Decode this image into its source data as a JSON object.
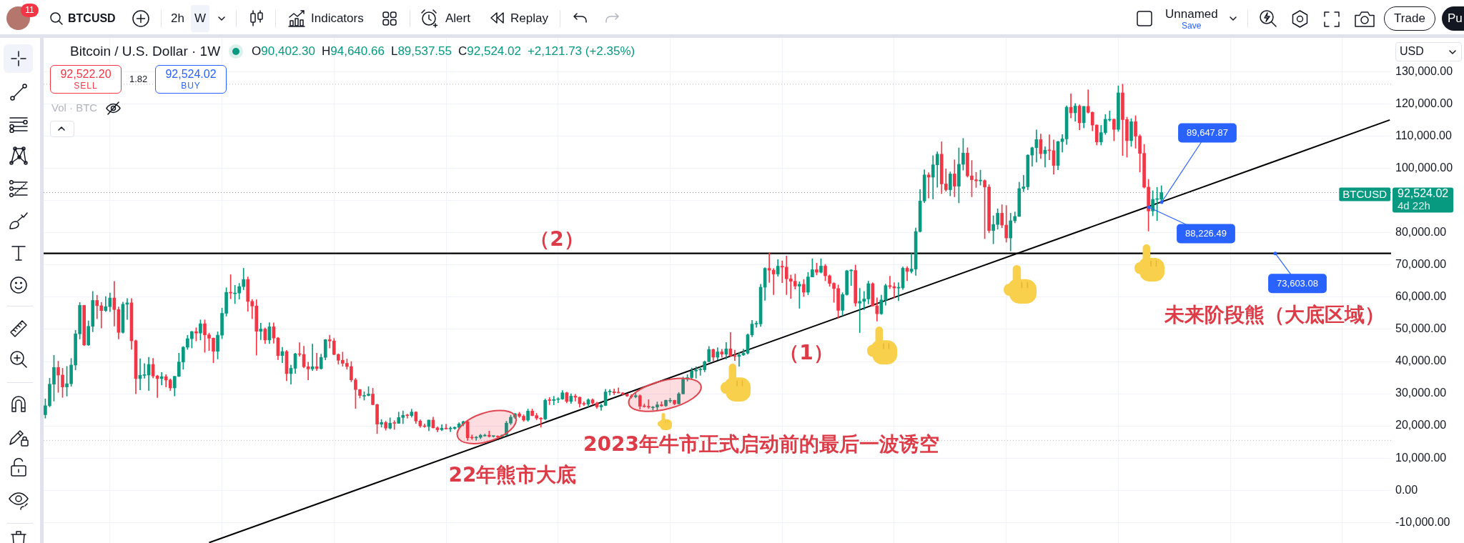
{
  "chart_data": {
    "type": "candlestick",
    "title": "Bitcoin / U.S. Dollar · 1W",
    "categories": [
      null,
      null,
      null,
      null,
      null,
      null,
      null,
      null,
      null,
      null,
      null,
      null,
      null,
      null,
      null,
      null,
      null,
      null,
      null,
      null,
      null,
      null,
      null,
      null,
      null,
      null,
      null,
      null,
      null,
      null,
      null,
      null,
      null,
      null,
      null,
      null,
      null,
      null,
      null,
      null,
      null,
      null,
      null,
      null,
      null,
      null,
      null,
      null,
      null,
      null,
      null,
      null,
      null,
      null,
      null,
      null,
      null,
      null,
      null,
      null,
      null,
      null,
      null,
      null,
      null,
      null,
      null,
      null,
      null,
      null,
      null,
      null,
      null,
      null,
      null,
      null,
      null,
      null,
      null,
      null,
      null,
      null,
      null,
      null,
      null,
      null,
      null,
      null,
      null,
      null,
      null,
      null,
      null,
      null,
      null,
      null,
      null,
      null,
      null,
      null,
      null,
      null,
      null,
      null,
      null,
      null,
      null,
      null,
      null,
      null,
      null,
      null,
      null,
      null,
      null,
      null,
      null,
      null,
      null,
      null,
      null,
      null,
      null,
      null,
      null,
      null,
      null,
      null,
      null,
      null,
      null,
      null,
      null,
      null,
      null,
      null,
      null,
      null,
      null,
      null,
      null,
      null,
      null,
      null,
      null,
      null,
      null,
      null,
      null,
      null,
      null,
      null,
      null,
      null,
      null,
      null,
      null,
      null,
      null,
      null,
      null,
      null,
      null,
      null,
      null,
      null,
      null,
      null,
      null,
      null,
      null,
      null,
      null,
      null,
      null,
      null,
      null,
      null,
      null,
      null,
      null,
      null,
      null,
      null,
      null,
      null,
      null,
      null,
      null,
      null,
      null,
      null,
      null,
      null,
      null,
      null,
      null,
      null,
      null,
      null,
      null,
      null,
      null,
      null,
      null,
      null,
      null,
      null,
      null,
      null,
      null,
      null,
      null,
      null,
      null,
      null,
      null,
      null,
      null,
      null,
      null,
      null,
      null,
      null,
      null,
      null,
      null,
      null,
      null,
      null,
      null,
      null,
      null,
      null,
      null,
      null,
      null,
      null,
      null,
      null,
      null,
      null,
      null,
      null,
      null,
      null,
      null,
      null,
      null,
      null,
      null,
      null,
      null,
      null,
      null,
      null,
      null,
      null,
      null,
      null,
      null,
      null,
      null,
      null,
      null,
      null,
      null,
      null,
      null,
      null,
      null,
      null,
      null,
      null,
      null,
      null,
      null,
      null,
      null,
      null,
      null,
      null,
      null,
      null,
      null,
      null,
      null,
      null,
      null,
      null,
      null,
      null,
      null,
      null,
      null,
      null,
      null,
      null,
      null,
      null,
      null,
      null,
      null,
      null,
      null,
      null,
      null,
      null,
      null,
      null,
      null,
      null,
      null
    ],
    "ohlc": [
      [
        23470,
        28400,
        22400,
        26270
      ],
      [
        26270,
        34800,
        25900,
        32960
      ],
      [
        32960,
        41950,
        27700,
        38150
      ],
      [
        38150,
        40100,
        30400,
        35800
      ],
      [
        35800,
        37900,
        28850,
        32100
      ],
      [
        32100,
        38500,
        29250,
        33100
      ],
      [
        33100,
        40950,
        32300,
        38900
      ],
      [
        38900,
        49700,
        37400,
        48600
      ],
      [
        48600,
        58350,
        47000,
        57450
      ],
      [
        57450,
        57500,
        44900,
        45150
      ],
      [
        45150,
        52650,
        44950,
        50950
      ],
      [
        50950,
        61800,
        49250,
        59000
      ],
      [
        59000,
        60600,
        53300,
        57350
      ],
      [
        57350,
        58400,
        50400,
        55850
      ],
      [
        55850,
        60200,
        55500,
        57050
      ],
      [
        57050,
        61300,
        55500,
        59750
      ],
      [
        59750,
        64900,
        51000,
        56150
      ],
      [
        56150,
        57000,
        47000,
        49050
      ],
      [
        49050,
        58450,
        48800,
        57800
      ],
      [
        57800,
        59600,
        53050,
        58250
      ],
      [
        58250,
        59600,
        43800,
        46450
      ],
      [
        46450,
        46700,
        30000,
        34700
      ],
      [
        34700,
        40900,
        31200,
        35700
      ],
      [
        35700,
        39400,
        34800,
        35800
      ],
      [
        35800,
        41300,
        31000,
        39100
      ],
      [
        39100,
        41000,
        34900,
        35500
      ],
      [
        35500,
        35750,
        28800,
        34700
      ],
      [
        34700,
        36600,
        32700,
        35300
      ],
      [
        35300,
        35950,
        32100,
        34250
      ],
      [
        34250,
        34600,
        31000,
        31800
      ],
      [
        31800,
        35400,
        29300,
        35400
      ],
      [
        35400,
        42600,
        35300,
        39850
      ],
      [
        39850,
        44700,
        37600,
        44450
      ],
      [
        44450,
        48150,
        43800,
        47100
      ],
      [
        47100,
        49400,
        44200,
        49300
      ],
      [
        49300,
        50500,
        46400,
        48850
      ],
      [
        48850,
        52950,
        46700,
        51750
      ],
      [
        51750,
        52950,
        42850,
        48300
      ],
      [
        48300,
        48850,
        43400,
        47250
      ],
      [
        47250,
        47350,
        39600,
        43200
      ],
      [
        43200,
        49250,
        40800,
        48200
      ],
      [
        48200,
        56600,
        47100,
        55000
      ],
      [
        55000,
        62950,
        54100,
        61500
      ],
      [
        61500,
        67000,
        59500,
        61300
      ],
      [
        61300,
        63700,
        58000,
        61300
      ],
      [
        61300,
        64300,
        59400,
        63300
      ],
      [
        63300,
        69000,
        62300,
        65500
      ],
      [
        65500,
        66300,
        55600,
        58700
      ],
      [
        58700,
        59300,
        53300,
        57250
      ],
      [
        57250,
        59200,
        42000,
        49400
      ],
      [
        49400,
        51950,
        46800,
        50100
      ],
      [
        50100,
        50500,
        45600,
        46700
      ],
      [
        46700,
        52100,
        45550,
        50800
      ],
      [
        50800,
        52050,
        45700,
        47300
      ],
      [
        47300,
        47550,
        40600,
        41850
      ],
      [
        41850,
        44450,
        39650,
        43100
      ],
      [
        43100,
        43500,
        34000,
        36250
      ],
      [
        36250,
        38900,
        32950,
        37900
      ],
      [
        37900,
        42600,
        36300,
        42400
      ],
      [
        42400,
        45850,
        41650,
        42200
      ],
      [
        42200,
        44750,
        38000,
        38400
      ],
      [
        38400,
        39800,
        34300,
        37700
      ],
      [
        37700,
        45400,
        37200,
        38400
      ],
      [
        38400,
        42600,
        37200,
        37800
      ],
      [
        37800,
        42300,
        37600,
        41300
      ],
      [
        41300,
        46900,
        40500,
        46800
      ],
      [
        46800,
        48200,
        44200,
        46400
      ],
      [
        46400,
        47200,
        42100,
        42200
      ],
      [
        42200,
        42400,
        39200,
        40400
      ],
      [
        40400,
        42950,
        38550,
        39450
      ],
      [
        39450,
        40800,
        37600,
        38450
      ],
      [
        38450,
        40000,
        33700,
        34300
      ],
      [
        34300,
        34800,
        25400,
        31300
      ],
      [
        31300,
        31350,
        28650,
        29450
      ],
      [
        29450,
        30600,
        28000,
        29450
      ],
      [
        29450,
        32200,
        29300,
        29900
      ],
      [
        29900,
        31700,
        26500,
        26600
      ],
      [
        26600,
        26800,
        17600,
        20550
      ],
      [
        20550,
        22000,
        19600,
        21050
      ],
      [
        21050,
        21500,
        18650,
        19300
      ],
      [
        19300,
        22500,
        19000,
        20850
      ],
      [
        20850,
        21650,
        18900,
        20800
      ],
      [
        20800,
        24300,
        20750,
        22600
      ],
      [
        22600,
        24650,
        20700,
        23300
      ],
      [
        23300,
        23650,
        22400,
        23200
      ],
      [
        23200,
        25200,
        22700,
        24300
      ],
      [
        24300,
        24450,
        20750,
        21500
      ],
      [
        21500,
        21900,
        19550,
        20000
      ],
      [
        20000,
        20600,
        19550,
        19800
      ],
      [
        19800,
        21850,
        18500,
        21800
      ],
      [
        21800,
        22700,
        19300,
        19400
      ],
      [
        19400,
        19700,
        18150,
        18800
      ],
      [
        18800,
        20400,
        18500,
        19300
      ],
      [
        19300,
        20500,
        19000,
        19050
      ],
      [
        19050,
        19700,
        18200,
        19200
      ],
      [
        19200,
        19700,
        18900,
        19550
      ],
      [
        19550,
        21000,
        19250,
        20600
      ],
      [
        20600,
        21500,
        20050,
        21300
      ],
      [
        21300,
        21500,
        15500,
        16300
      ],
      [
        16300,
        17200,
        15800,
        16280
      ],
      [
        16280,
        16750,
        15500,
        16450
      ],
      [
        16450,
        17400,
        16000,
        17100
      ],
      [
        17100,
        17450,
        16750,
        17100
      ],
      [
        17100,
        18400,
        16500,
        16750
      ],
      [
        16750,
        16950,
        16500,
        16840
      ],
      [
        16840,
        16950,
        16350,
        16600
      ],
      [
        16600,
        17200,
        16500,
        17120
      ],
      [
        17120,
        21450,
        17100,
        20870
      ],
      [
        20870,
        23350,
        20400,
        22700
      ],
      [
        22700,
        23950,
        22300,
        23750
      ],
      [
        23750,
        24250,
        22600,
        23000
      ],
      [
        23000,
        23450,
        21400,
        21800
      ],
      [
        21800,
        25250,
        21400,
        24600
      ],
      [
        24600,
        25250,
        23100,
        23200
      ],
      [
        23200,
        23900,
        21900,
        22400
      ],
      [
        22400,
        22600,
        19600,
        22150
      ],
      [
        22150,
        28400,
        21900,
        27950
      ],
      [
        27950,
        28850,
        26600,
        27900
      ],
      [
        27900,
        29200,
        26550,
        28200
      ],
      [
        28200,
        28800,
        27200,
        28350
      ],
      [
        28350,
        31000,
        28200,
        30300
      ],
      [
        30300,
        30500,
        27150,
        27600
      ],
      [
        27600,
        30000,
        26950,
        29250
      ],
      [
        29250,
        29800,
        27700,
        28900
      ],
      [
        28900,
        29000,
        25800,
        26900
      ],
      [
        26900,
        27500,
        26300,
        26750
      ],
      [
        26750,
        28450,
        25900,
        28100
      ],
      [
        28100,
        28450,
        26600,
        27100
      ],
      [
        27100,
        27400,
        25400,
        25900
      ],
      [
        25900,
        26800,
        24800,
        26350
      ],
      [
        26350,
        31400,
        26250,
        30550
      ],
      [
        30550,
        31300,
        29550,
        30600
      ],
      [
        30600,
        31500,
        29700,
        30300
      ],
      [
        30300,
        31800,
        30200,
        30250
      ],
      [
        30250,
        30400,
        29500,
        29850
      ],
      [
        29850,
        29950,
        29100,
        29300
      ],
      [
        29300,
        29750,
        28600,
        29050
      ],
      [
        29050,
        30250,
        28700,
        29400
      ],
      [
        29400,
        29650,
        25200,
        26100
      ],
      [
        26100,
        26800,
        25800,
        26000
      ],
      [
        26000,
        28150,
        25400,
        25850
      ],
      [
        25850,
        26100,
        24900,
        25850
      ],
      [
        25850,
        27450,
        24900,
        26550
      ],
      [
        26550,
        27500,
        26100,
        26250
      ],
      [
        26250,
        28050,
        26000,
        27950
      ],
      [
        27950,
        28600,
        27200,
        27950
      ],
      [
        27950,
        28000,
        26550,
        26850
      ],
      [
        26850,
        30400,
        26800,
        29950
      ],
      [
        29950,
        35200,
        29900,
        34500
      ],
      [
        34500,
        35950,
        33900,
        35000
      ],
      [
        35000,
        38000,
        34500,
        37050
      ],
      [
        37050,
        38400,
        34800,
        37400
      ],
      [
        37400,
        38400,
        35700,
        37450
      ],
      [
        37450,
        40200,
        36800,
        39950
      ],
      [
        39950,
        44700,
        39900,
        43750
      ],
      [
        43750,
        43900,
        40200,
        41350
      ],
      [
        41350,
        44300,
        40500,
        43000
      ],
      [
        43000,
        43800,
        41300,
        42300
      ],
      [
        42300,
        45900,
        40750,
        43950
      ],
      [
        43950,
        49050,
        41500,
        41750
      ],
      [
        41750,
        43550,
        40300,
        41600
      ],
      [
        41600,
        42850,
        38550,
        42050
      ],
      [
        42050,
        43850,
        41850,
        42600
      ],
      [
        42600,
        48600,
        42300,
        48300
      ],
      [
        48300,
        52800,
        47700,
        51650
      ],
      [
        51650,
        52550,
        50600,
        51700
      ],
      [
        51700,
        64000,
        50900,
        63100
      ],
      [
        63100,
        69200,
        59000,
        68950
      ],
      [
        68950,
        73800,
        64550,
        68400
      ],
      [
        68400,
        68900,
        60800,
        67200
      ],
      [
        67200,
        71700,
        66500,
        69650
      ],
      [
        69650,
        71300,
        64500,
        69350
      ],
      [
        69350,
        72800,
        60800,
        65700
      ],
      [
        65700,
        66900,
        59600,
        64950
      ],
      [
        64950,
        67200,
        62500,
        63450
      ],
      [
        63450,
        64800,
        56550,
        64000
      ],
      [
        64000,
        65500,
        60200,
        61550
      ],
      [
        61550,
        67700,
        60750,
        66300
      ],
      [
        66300,
        71950,
        66300,
        68550
      ],
      [
        68550,
        70600,
        66900,
        67750
      ],
      [
        67750,
        71950,
        67500,
        69650
      ],
      [
        69650,
        70200,
        65100,
        66650
      ],
      [
        66650,
        66950,
        63400,
        64300
      ],
      [
        64300,
        64500,
        58400,
        62700
      ],
      [
        62700,
        63800,
        53500,
        55900
      ],
      [
        55900,
        61400,
        54300,
        60800
      ],
      [
        60800,
        68400,
        60600,
        68200
      ],
      [
        68200,
        68600,
        63600,
        68300
      ],
      [
        68300,
        70000,
        57200,
        58150
      ],
      [
        58150,
        62750,
        49000,
        58700
      ],
      [
        58700,
        61800,
        56100,
        59450
      ],
      [
        59450,
        65000,
        57900,
        64200
      ],
      [
        64200,
        64500,
        57200,
        57300
      ],
      [
        57300,
        59800,
        52550,
        54850
      ],
      [
        54850,
        60650,
        54600,
        59150
      ],
      [
        59150,
        64100,
        57500,
        63600
      ],
      [
        63600,
        66500,
        62700,
        63300
      ],
      [
        63300,
        64500,
        59800,
        62850
      ],
      [
        62850,
        64500,
        58900,
        62900
      ],
      [
        62900,
        69400,
        62400,
        69000
      ],
      [
        69000,
        69500,
        65100,
        68000
      ],
      [
        68000,
        73600,
        67500,
        68750
      ],
      [
        68750,
        81500,
        66800,
        80400
      ],
      [
        80400,
        93450,
        80200,
        89900
      ],
      [
        89900,
        99600,
        89400,
        98000
      ],
      [
        98000,
        98700,
        90800,
        97300
      ],
      [
        97300,
        104000,
        90500,
        101150
      ],
      [
        101150,
        105200,
        94150,
        104450
      ],
      [
        104450,
        108300,
        92200,
        95200
      ],
      [
        95200,
        99900,
        92900,
        93400
      ],
      [
        93400,
        98950,
        91500,
        98300
      ],
      [
        98300,
        102700,
        91200,
        94500
      ],
      [
        94500,
        106400,
        89300,
        101300
      ],
      [
        101300,
        109350,
        99500,
        104800
      ],
      [
        104800,
        106450,
        97300,
        97700
      ],
      [
        97700,
        102500,
        91200,
        96500
      ],
      [
        96500,
        98800,
        94100,
        96150
      ],
      [
        96150,
        99500,
        94800,
        96250
      ],
      [
        96250,
        96500,
        78200,
        94250
      ],
      [
        94250,
        95000,
        80000,
        80700
      ],
      [
        80700,
        85300,
        76600,
        82600
      ],
      [
        82600,
        87450,
        81150,
        86100
      ],
      [
        86100,
        88750,
        81600,
        82400
      ],
      [
        82400,
        88500,
        77100,
        78400
      ],
      [
        78400,
        86100,
        74400,
        83750
      ],
      [
        83750,
        86500,
        83100,
        85100
      ],
      [
        85100,
        95750,
        85100,
        93750
      ],
      [
        93750,
        97900,
        92800,
        94300
      ],
      [
        94300,
        104300,
        93400,
        104150
      ],
      [
        104150,
        106650,
        100700,
        106450
      ],
      [
        106450,
        112000,
        102000,
        109000
      ],
      [
        109000,
        110700,
        103100,
        104600
      ],
      [
        104600,
        106800,
        100400,
        105700
      ],
      [
        105700,
        110500,
        102700,
        105550
      ],
      [
        105550,
        108900,
        98200,
        100950
      ],
      [
        100950,
        108500,
        99600,
        108350
      ],
      [
        108350,
        110550,
        105100,
        109200
      ],
      [
        109200,
        119500,
        107500,
        119050
      ],
      [
        119050,
        123200,
        115700,
        117300
      ],
      [
        117300,
        120200,
        114700,
        119400
      ],
      [
        119400,
        119800,
        112000,
        114200
      ],
      [
        114200,
        119300,
        112600,
        119300
      ],
      [
        119300,
        124450,
        117200,
        117450
      ],
      [
        117450,
        117600,
        111700,
        113500
      ],
      [
        113500,
        113600,
        107300,
        108250
      ],
      [
        108250,
        113400,
        107300,
        111150
      ],
      [
        111150,
        116800,
        110600,
        115300
      ],
      [
        115300,
        117900,
        114700,
        115300
      ],
      [
        115300,
        115400,
        108600,
        112150
      ],
      [
        112150,
        125700,
        111500,
        123500
      ],
      [
        123500,
        126200,
        104000,
        115200
      ],
      [
        115200,
        115950,
        103500,
        108650
      ],
      [
        108650,
        115500,
        106900,
        114550
      ],
      [
        114550,
        116400,
        106300,
        110050
      ],
      [
        110050,
        110500,
        98900,
        104700
      ],
      [
        104700,
        107500,
        93900,
        94200
      ],
      [
        94200,
        96600,
        80550,
        86800
      ],
      [
        86800,
        93100,
        85300,
        90400
      ],
      [
        90400,
        94150,
        83800,
        90402.3
      ],
      [
        90402.3,
        94640.66,
        89537.55,
        92524.02
      ],
      null,
      null,
      null,
      null,
      null,
      null,
      null,
      null,
      null,
      null,
      null,
      null,
      null,
      null,
      null,
      null,
      null,
      null,
      null,
      null,
      null,
      null,
      null,
      null,
      null,
      null,
      null,
      null,
      null,
      null,
      null,
      null,
      null,
      null,
      null,
      null,
      null,
      null,
      null,
      null,
      null,
      null,
      null,
      null,
      null,
      null,
      null,
      null,
      null,
      null,
      null,
      null,
      null
    ],
    "colors": [
      "#089981",
      "#089981",
      "#089981",
      "#f23645",
      "#f23645",
      "#089981",
      "#089981",
      "#089981",
      "#089981",
      "#f23645",
      "#089981",
      "#089981",
      "#f23645",
      "#f23645",
      "#089981",
      "#089981",
      "#f23645",
      "#f23645",
      "#089981",
      "#089981",
      "#f23645",
      "#f23645",
      "#089981",
      "#089981",
      "#089981",
      "#f23645",
      "#f23645",
      "#089981",
      "#f23645",
      "#f23645",
      "#089981",
      "#089981",
      "#089981",
      "#089981",
      "#089981",
      "#f23645",
      "#089981",
      "#f23645",
      "#f23645",
      "#f23645",
      "#089981",
      "#089981",
      "#089981",
      "#f23645",
      "#089981",
      "#089981",
      "#089981",
      "#f23645",
      "#f23645",
      "#f23645",
      "#089981",
      "#f23645",
      "#089981",
      "#f23645",
      "#f23645",
      "#089981",
      "#f23645",
      "#089981",
      "#089981",
      "#f23645",
      "#f23645",
      "#f23645",
      "#089981",
      "#f23645",
      "#089981",
      "#089981",
      "#f23645",
      "#f23645",
      "#f23645",
      "#f23645",
      "#f23645",
      "#f23645",
      "#f23645",
      "#f23645",
      "#089981",
      "#089981",
      "#f23645",
      "#f23645",
      "#089981",
      "#f23645",
      "#089981",
      "#f23645",
      "#089981",
      "#089981",
      "#f23645",
      "#089981",
      "#f23645",
      "#f23645",
      "#f23645",
      "#089981",
      "#f23645",
      "#f23645",
      "#089981",
      "#f23645",
      "#089981",
      "#089981",
      "#089981",
      "#089981",
      "#f23645",
      "#f23645",
      "#089981",
      "#089981",
      "#089981",
      "#f23645",
      "#089981",
      "#f23645",
      "#089981",
      "#089981",
      "#089981",
      "#089981",
      "#f23645",
      "#f23645",
      "#089981",
      "#f23645",
      "#f23645",
      "#f23645",
      "#089981",
      "#f23645",
      "#089981",
      "#089981",
      "#089981",
      "#f23645",
      "#089981",
      "#f23645",
      "#f23645",
      "#f23645",
      "#089981",
      "#f23645",
      "#f23645",
      "#089981",
      "#089981",
      "#089981",
      "#f23645",
      "#f23645",
      "#f23645",
      "#f23645",
      "#f23645",
      "#089981",
      "#f23645",
      "#f23645",
      "#f23645",
      "#089981",
      "#089981",
      "#f23645",
      "#089981",
      "#089981",
      "#f23645",
      "#089981",
      "#089981",
      "#089981",
      "#089981",
      "#089981",
      "#089981",
      "#089981",
      "#089981",
      "#f23645",
      "#089981",
      "#f23645",
      "#089981",
      "#f23645",
      "#f23645",
      "#089981",
      "#089981",
      "#089981",
      "#089981",
      "#089981",
      "#089981",
      "#089981",
      "#f23645",
      "#f23645",
      "#089981",
      "#f23645",
      "#f23645",
      "#f23645",
      "#f23645",
      "#089981",
      "#f23645",
      "#089981",
      "#089981",
      "#f23645",
      "#089981",
      "#f23645",
      "#f23645",
      "#f23645",
      "#f23645",
      "#089981",
      "#089981",
      "#089981",
      "#f23645",
      "#089981",
      "#089981",
      "#089981",
      "#f23645",
      "#f23645",
      "#089981",
      "#089981",
      "#f23645",
      "#f23645",
      "#089981",
      "#089981",
      "#f23645",
      "#089981",
      "#089981",
      "#089981",
      "#089981",
      "#f23645",
      "#089981",
      "#089981",
      "#f23645",
      "#f23645",
      "#089981",
      "#f23645",
      "#089981",
      "#089981",
      "#f23645",
      "#f23645",
      "#f23645",
      "#089981",
      "#f23645",
      "#f23645",
      "#089981",
      "#089981",
      "#f23645",
      "#f23645",
      "#089981",
      "#089981",
      "#089981",
      "#089981",
      "#089981",
      "#089981",
      "#089981",
      "#f23645",
      "#089981",
      "#f23645",
      "#f23645",
      "#089981",
      "#089981",
      "#089981",
      "#f23645",
      "#089981",
      "#f23645",
      "#089981",
      "#f23645",
      "#f23645",
      "#f23645",
      "#089981",
      "#089981",
      "#089981",
      "#f23645",
      "#089981",
      "#f23645",
      "#f23645",
      "#089981",
      "#f23645",
      "#f23645",
      "#f23645",
      "#f23645",
      "#089981",
      "#089981",
      "#089981",
      null,
      null,
      null,
      null,
      null,
      null,
      null,
      null,
      null,
      null,
      null,
      null,
      null,
      null,
      null,
      null,
      null,
      null,
      null,
      null,
      null,
      null,
      null,
      null,
      null,
      null,
      null,
      null,
      null,
      null,
      null,
      null,
      null,
      null,
      null,
      null,
      null,
      null,
      null,
      null,
      null,
      null,
      null,
      null,
      null,
      null,
      null,
      null,
      null,
      null,
      null,
      null,
      null
    ],
    "series": [
      {
        "type": "line",
        "color": "#000000",
        "values": [
          null,
          null,
          null,
          null,
          null,
          null,
          null,
          null,
          null,
          null,
          null,
          null,
          null,
          null,
          null,
          null,
          null,
          null,
          null,
          null,
          null,
          null,
          null,
          null,
          null,
          null,
          null,
          null,
          null,
          null,
          null,
          null,
          null,
          null,
          null,
          null,
          null,
          null,
          -16300,
          null,
          null,
          null,
          null,
          null,
          null,
          null,
          null,
          null,
          null,
          null,
          null,
          null,
          null,
          null,
          null,
          null,
          null,
          null,
          null,
          null,
          null,
          null,
          null,
          null,
          null,
          null,
          null,
          null,
          null,
          null,
          null,
          null,
          null,
          null,
          null,
          null,
          null,
          null,
          null,
          null,
          null,
          null,
          null,
          null,
          null,
          null,
          null,
          null,
          null,
          null,
          null,
          null,
          null,
          null,
          null,
          null,
          null,
          null,
          null,
          null,
          null,
          null,
          null,
          null,
          null,
          null,
          null,
          null,
          null,
          null,
          null,
          null,
          null,
          null,
          null,
          null,
          null,
          null,
          null,
          null,
          null,
          null,
          null,
          null,
          null,
          null,
          null,
          null,
          null,
          null,
          null,
          null,
          null,
          null,
          null,
          null,
          null,
          null,
          null,
          null,
          null,
          null,
          null,
          null,
          null,
          null,
          null,
          null,
          null,
          null,
          null,
          null,
          null,
          null,
          null,
          null,
          null,
          null,
          null,
          null,
          null,
          null,
          null,
          null,
          null,
          null,
          null,
          null,
          null,
          null,
          null,
          null,
          null,
          null,
          null,
          null,
          null,
          null,
          null,
          null,
          null,
          null,
          null,
          null,
          null,
          null,
          null,
          null,
          null,
          null,
          null,
          null,
          null,
          null,
          null,
          null,
          null,
          null,
          null,
          null,
          null,
          null,
          null,
          null,
          null,
          null,
          null,
          null,
          null,
          null,
          null,
          null,
          null,
          null,
          null,
          null,
          null,
          null,
          null,
          null,
          null,
          null,
          null,
          null,
          null,
          null,
          null,
          null,
          null,
          null,
          null,
          null,
          null,
          null,
          null,
          null,
          null,
          null,
          null,
          null,
          null,
          null,
          null,
          null,
          null,
          null,
          null,
          null,
          null,
          null,
          null,
          null,
          null,
          null,
          null,
          null,
          88200,
          null,
          null,
          89600,
          null,
          null,
          null,
          null,
          null,
          null,
          null,
          null,
          null,
          null,
          null,
          null,
          null,
          null,
          null,
          null,
          null,
          null,
          null,
          null,
          null,
          null,
          null,
          null,
          null,
          null,
          null,
          null,
          null,
          null,
          null,
          null,
          null,
          null,
          null,
          null,
          null,
          null,
          null,
          null,
          null,
          null,
          null,
          null,
          null,
          null,
          null,
          null,
          null,
          null,
          null,
          null,
          115100
        ]
      }
    ],
    "ylim": [
      -16400,
      140600
    ],
    "yticks": [
      {
        "value": -10000,
        "label": "-10,000.00"
      },
      {
        "value": 0,
        "label": "0.00"
      },
      {
        "value": 10000,
        "label": "10,000.00"
      },
      {
        "value": 20000,
        "label": "20,000.00"
      },
      {
        "value": 30000,
        "label": "30,000.00"
      },
      {
        "value": 40000,
        "label": "40,000.00"
      },
      {
        "value": 50000,
        "label": "50,000.00"
      },
      {
        "value": 60000,
        "label": "60,000.00"
      },
      {
        "value": 70000,
        "label": "70,000.00"
      },
      {
        "value": 80000,
        "label": "80,000.00"
      },
      {
        "value": 90000,
        "label": null
      },
      {
        "value": 100000,
        "label": "100,000.00"
      },
      {
        "value": 110000,
        "label": "110,000.00"
      },
      {
        "value": 120000,
        "label": "120,000.00"
      },
      {
        "value": 130000,
        "label": "130,000.00"
      }
    ],
    "grid": true,
    "tick_labels": "y",
    "ref_lines": [
      {
        "axis": "y",
        "value": 73603.08,
        "label": "73,603.08",
        "color": "#000000"
      },
      {
        "axis": "y",
        "value": 92524.02,
        "label": "92,524.02",
        "line_style": "dotted",
        "color": "#9598a1"
      },
      {
        "axis": "y",
        "value": 126200,
        "line_style": "dotted",
        "color": "#b2b5be"
      },
      {
        "axis": "y",
        "value": 15500,
        "line_style": "dotted",
        "color": "#b2b5be"
      }
    ],
    "annotations": [
      "（2）",
      "（1）",
      "22年熊市大底",
      "2023年牛市正式启动前的最后一波诱空",
      "未来阶段熊（大底区域）",
      "11",
      "BTCUSD",
      "2h",
      "W",
      "Indicators",
      "Alert",
      "Replay",
      "Unnamed",
      "Save",
      "Trade",
      "Pu",
      "O",
      "90,402.30",
      "H",
      "94,640.66",
      "L",
      "89,537.55",
      "C",
      "92,524.02",
      "+2,121.73 (+2.35%)",
      "92,522.20",
      "SELL",
      "1.82",
      "92,524.02",
      "BUY",
      "Vol · BTC",
      "USD",
      "BTCUSD",
      "4d 22h",
      "89,647.87",
      "88,226.49"
    ]
  }
}
